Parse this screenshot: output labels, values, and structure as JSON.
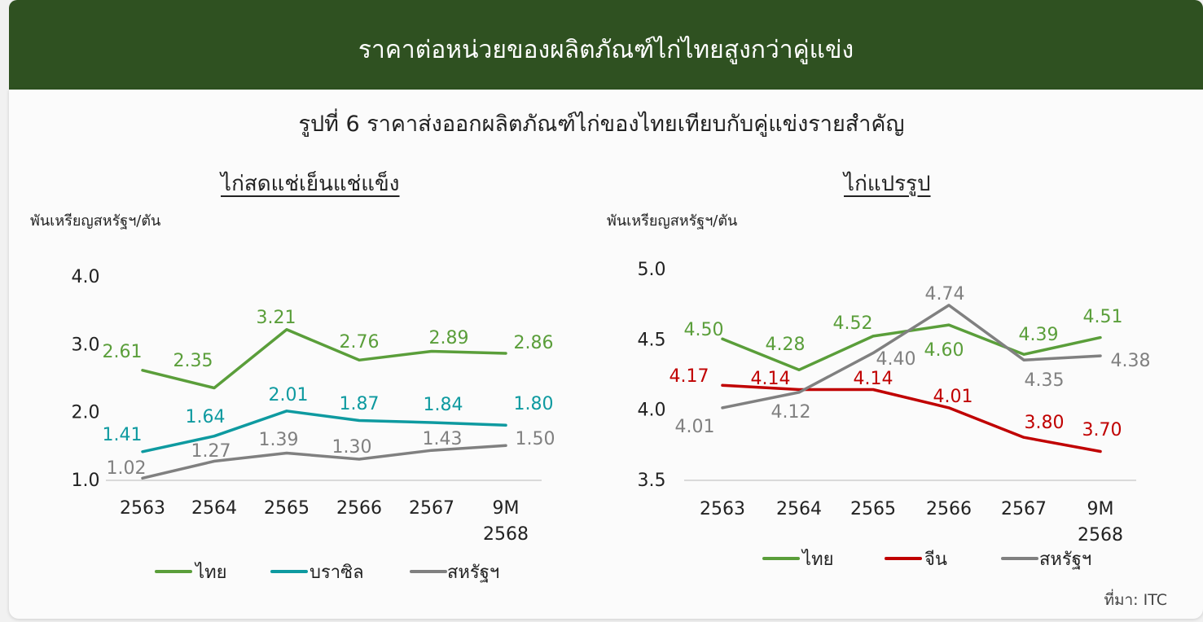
{
  "header": {
    "title": "ราคาต่อหน่วยของผลิตภัณฑ์ไก่ไทยสูงกว่าคู่แข่ง"
  },
  "subtitle": "รูปที่ 6 ราคาส่งออกผลิตภัณฑ์ไก่ของไทยเทียบกับคู่แข่งรายสำคัญ",
  "source": "ที่มา: ITC",
  "colors": {
    "banner": "#2f5121",
    "thai": "#5a9e3a",
    "brazil": "#0e9aa0",
    "usa": "#808080",
    "china": "#c00000"
  },
  "chart_data": [
    {
      "type": "line",
      "title": "ไก่สดแช่เย็นแช่แข็ง",
      "ylabel": "พันเหรียญสหรัฐฯ/ตัน",
      "categories": [
        "2563",
        "2564",
        "2565",
        "2566",
        "2567",
        "9M 2568"
      ],
      "yticks": [
        "4.0",
        "3.0",
        "2.0",
        "1.0"
      ],
      "ylim": [
        1.0,
        4.0
      ],
      "series": [
        {
          "name": "ไทย",
          "values": [
            2.61,
            2.35,
            3.21,
            2.76,
            2.89,
            2.86
          ],
          "labels": [
            "2.61",
            "2.35",
            "3.21",
            "2.76",
            "2.89",
            "2.86"
          ]
        },
        {
          "name": "บราซิล",
          "values": [
            1.41,
            1.64,
            2.01,
            1.87,
            1.84,
            1.8
          ],
          "labels": [
            "1.41",
            "1.64",
            "2.01",
            "1.87",
            "1.84",
            "1.80"
          ]
        },
        {
          "name": "สหรัฐฯ",
          "values": [
            1.02,
            1.27,
            1.39,
            1.3,
            1.43,
            1.5
          ],
          "labels": [
            "1.02",
            "1.27",
            "1.39",
            "1.30",
            "1.43",
            "1.50"
          ]
        }
      ],
      "legend": "bottom"
    },
    {
      "type": "line",
      "title": "ไก่แปรรูป",
      "ylabel": "พันเหรียญสหรัฐฯ/ตัน",
      "categories": [
        "2563",
        "2564",
        "2565",
        "2566",
        "2567",
        "9M 2568"
      ],
      "yticks": [
        "5.0",
        "4.5",
        "4.0",
        "3.5"
      ],
      "ylim": [
        3.5,
        5.0
      ],
      "series": [
        {
          "name": "ไทย",
          "values": [
            4.5,
            4.28,
            4.52,
            4.6,
            4.39,
            4.51
          ],
          "labels": [
            "4.50",
            "4.28",
            "4.52",
            "4.60",
            "4.39",
            "4.51"
          ]
        },
        {
          "name": "จีน",
          "values": [
            4.17,
            4.14,
            4.14,
            4.01,
            3.8,
            3.7
          ],
          "labels": [
            "4.17",
            "4.14",
            "4.14",
            "4.01",
            "3.80",
            "3.70"
          ]
        },
        {
          "name": "สหรัฐฯ",
          "values": [
            4.01,
            4.12,
            4.4,
            4.74,
            4.35,
            4.38
          ],
          "labels": [
            "4.01",
            "4.12",
            "4.40",
            "4.74",
            "4.35",
            "4.38"
          ]
        }
      ],
      "legend": "bottom"
    }
  ]
}
